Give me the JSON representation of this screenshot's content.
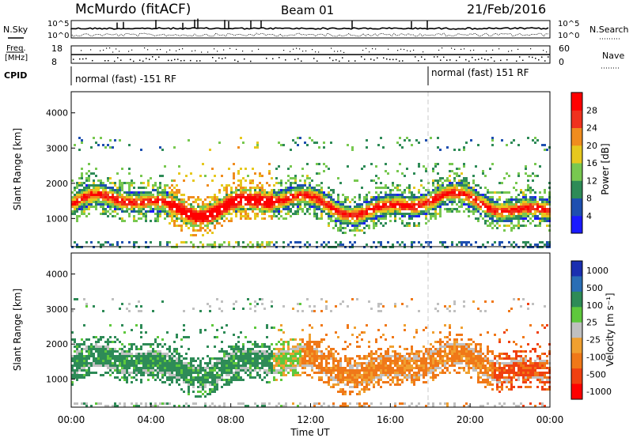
{
  "header": {
    "station": "McMurdo (fitACF)",
    "beam": "Beam 01",
    "date": "21/Feb/2016"
  },
  "top_panels": {
    "nsky_label": "N.Sky",
    "nsearch_label": "N.Search",
    "noise_ticks_left": [
      "10^5",
      "10^0"
    ],
    "noise_ticks_right": [
      "10^5",
      "10^0"
    ],
    "freq_label_1": "Freq.",
    "freq_label_2": "[MHz]",
    "freq_ticks": [
      "18",
      "8"
    ],
    "nave_label": "Nave",
    "nave_ticks": [
      "60",
      "0"
    ],
    "cpid_label": "CPID",
    "cpid_segments": [
      {
        "text": "normal (fast) -151 RF"
      },
      {
        "text": "normal (fast) 151 RF"
      }
    ]
  },
  "chart_data": [
    {
      "type": "heatmap",
      "name": "power",
      "ylabel": "Slant Range [km]",
      "xlabel": "",
      "yticks": [
        "1000",
        "2000",
        "3000",
        "4000"
      ],
      "ylim": [
        200,
        4600
      ],
      "xlim": [
        0,
        24
      ],
      "colorbar": {
        "label": "Power [dB]",
        "ticks": [
          "4",
          "8",
          "12",
          "16",
          "20",
          "24",
          "28"
        ],
        "colors": [
          "#1a1aff",
          "#1e4fb0",
          "#2e8b57",
          "#78c850",
          "#e6c81e",
          "#f08c1e",
          "#f0321e",
          "#ff0000"
        ]
      }
    },
    {
      "type": "heatmap",
      "name": "velocity",
      "ylabel": "Slant Range [km]",
      "xlabel": "Time UT",
      "yticks": [
        "1000",
        "2000",
        "3000",
        "4000"
      ],
      "ylim": [
        200,
        4600
      ],
      "xlim": [
        0,
        24
      ],
      "xticks": [
        "00:00",
        "04:00",
        "08:00",
        "12:00",
        "16:00",
        "20:00",
        "00:00"
      ],
      "colorbar": {
        "label": "Velocity [m s⁻¹]",
        "ticks": [
          "1000",
          "500",
          "100",
          "25",
          "-25",
          "-100",
          "-500",
          "-1000"
        ],
        "colors": [
          "#1a2fb0",
          "#2a6eb5",
          "#2e8b57",
          "#5ec83c",
          "#c0c0c0",
          "#f0a030",
          "#f07818",
          "#f04010",
          "#ff0000"
        ]
      }
    }
  ]
}
